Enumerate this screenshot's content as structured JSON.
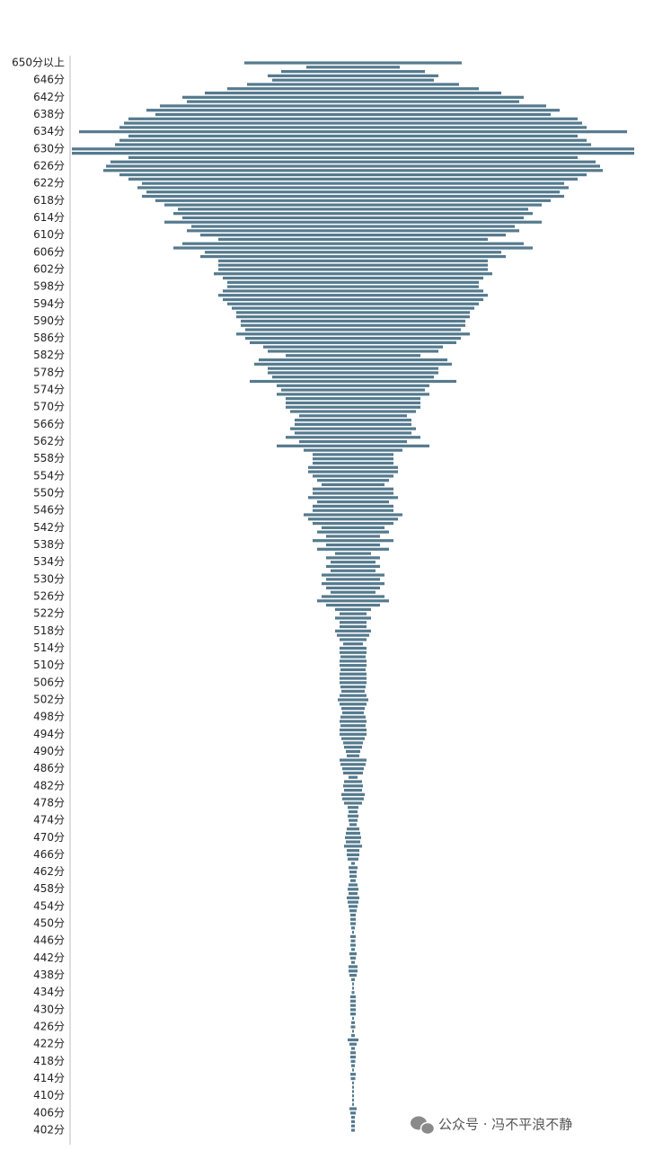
{
  "chart_data": {
    "type": "butterfly",
    "color": "#557a8e",
    "categories": [
      "650分以上",
      null,
      null,
      null,
      "646分",
      null,
      null,
      null,
      "642分",
      null,
      null,
      null,
      "638分",
      null,
      null,
      null,
      "634分",
      null,
      null,
      null,
      "630分",
      null,
      null,
      null,
      "626分",
      null,
      null,
      null,
      "622分",
      null,
      null,
      null,
      "618分",
      null,
      null,
      null,
      "614分",
      null,
      null,
      null,
      "610分",
      null,
      null,
      null,
      "606分",
      null,
      null,
      null,
      "602分",
      null,
      null,
      null,
      "598分",
      null,
      null,
      null,
      "594分",
      null,
      null,
      null,
      "590分",
      null,
      null,
      null,
      "586分",
      null,
      null,
      null,
      "582分",
      null,
      null,
      null,
      "578分",
      null,
      null,
      null,
      "574分",
      null,
      null,
      null,
      "570分",
      null,
      null,
      null,
      "566分",
      null,
      null,
      null,
      "562分",
      null,
      null,
      null,
      "558分",
      null,
      null,
      null,
      "554分",
      null,
      null,
      null,
      "550分",
      null,
      null,
      null,
      "546分",
      null,
      null,
      null,
      "542分",
      null,
      null,
      null,
      "538分",
      null,
      null,
      null,
      "534分",
      null,
      null,
      null,
      "530分",
      null,
      null,
      null,
      "526分",
      null,
      null,
      null,
      "522分",
      null,
      null,
      null,
      "518分",
      null,
      null,
      null,
      "514分",
      null,
      null,
      null,
      "510分",
      null,
      null,
      null,
      "506分",
      null,
      null,
      null,
      "502分",
      null,
      null,
      null,
      "498分",
      null,
      null,
      null,
      "494分",
      null,
      null,
      null,
      "490分",
      null,
      null,
      null,
      "486分",
      null,
      null,
      null,
      "482分",
      null,
      null,
      null,
      "478分",
      null,
      null,
      null,
      "474分",
      null,
      null,
      null,
      "470分",
      null,
      null,
      null,
      "466分",
      null,
      null,
      null,
      "462分",
      null,
      null,
      null,
      "458分",
      null,
      null,
      null,
      "454分",
      null,
      null,
      null,
      "450分",
      null,
      null,
      null,
      "446分",
      null,
      null,
      null,
      "442分",
      null,
      null,
      null,
      "438分",
      null,
      null,
      null,
      "434分",
      null,
      null,
      null,
      "430分",
      null,
      null,
      null,
      "426分",
      null,
      null,
      null,
      "422分",
      null,
      null,
      null,
      "418分",
      null,
      null,
      null,
      "414分",
      null,
      null,
      null,
      "410分",
      null,
      null,
      null,
      "406分",
      null,
      null,
      null,
      "402分"
    ],
    "values": [
      242,
      104,
      160,
      190,
      180,
      236,
      280,
      330,
      380,
      370,
      430,
      460,
      440,
      500,
      510,
      520,
      610,
      500,
      520,
      530,
      626,
      626,
      500,
      540,
      550,
      556,
      520,
      500,
      470,
      480,
      460,
      470,
      440,
      420,
      390,
      400,
      380,
      420,
      360,
      370,
      340,
      300,
      380,
      400,
      330,
      340,
      300,
      300,
      300,
      310,
      290,
      280,
      280,
      290,
      300,
      290,
      280,
      270,
      260,
      260,
      250,
      250,
      240,
      260,
      240,
      230,
      200,
      190,
      150,
      210,
      220,
      190,
      190,
      180,
      230,
      170,
      160,
      170,
      150,
      150,
      150,
      140,
      120,
      130,
      130,
      140,
      130,
      150,
      120,
      170,
      110,
      90,
      90,
      90,
      100,
      100,
      90,
      80,
      70,
      90,
      90,
      100,
      80,
      90,
      90,
      110,
      100,
      90,
      70,
      80,
      60,
      90,
      60,
      80,
      40,
      60,
      50,
      60,
      50,
      70,
      60,
      70,
      60,
      50,
      70,
      80,
      60,
      40,
      30,
      40,
      30,
      30,
      40,
      36,
      30,
      22,
      30,
      30,
      28,
      30,
      30,
      28,
      30,
      30,
      30,
      28,
      26,
      30,
      34,
      30,
      26,
      24,
      28,
      30,
      28,
      30,
      30,
      26,
      22,
      20,
      16,
      14,
      30,
      28,
      24,
      22,
      10,
      20,
      22,
      20,
      26,
      24,
      20,
      12,
      10,
      12,
      10,
      8,
      14,
      16,
      18,
      16,
      20,
      14,
      14,
      12,
      4,
      10,
      8,
      8,
      6,
      10,
      12,
      10,
      14,
      12,
      10,
      8,
      6,
      6,
      6,
      4,
      2,
      6,
      5,
      6,
      4,
      8,
      6,
      4,
      10,
      10,
      8,
      4,
      2,
      2,
      3,
      6,
      6,
      6,
      6,
      6,
      2,
      4,
      5,
      2,
      4,
      12,
      8,
      4,
      6,
      6,
      5,
      4,
      2,
      6,
      5,
      2,
      2,
      2,
      2,
      2,
      2,
      8,
      6,
      4,
      4,
      4,
      4
    ]
  },
  "watermark": "公众号 · 冯不平浪不静"
}
